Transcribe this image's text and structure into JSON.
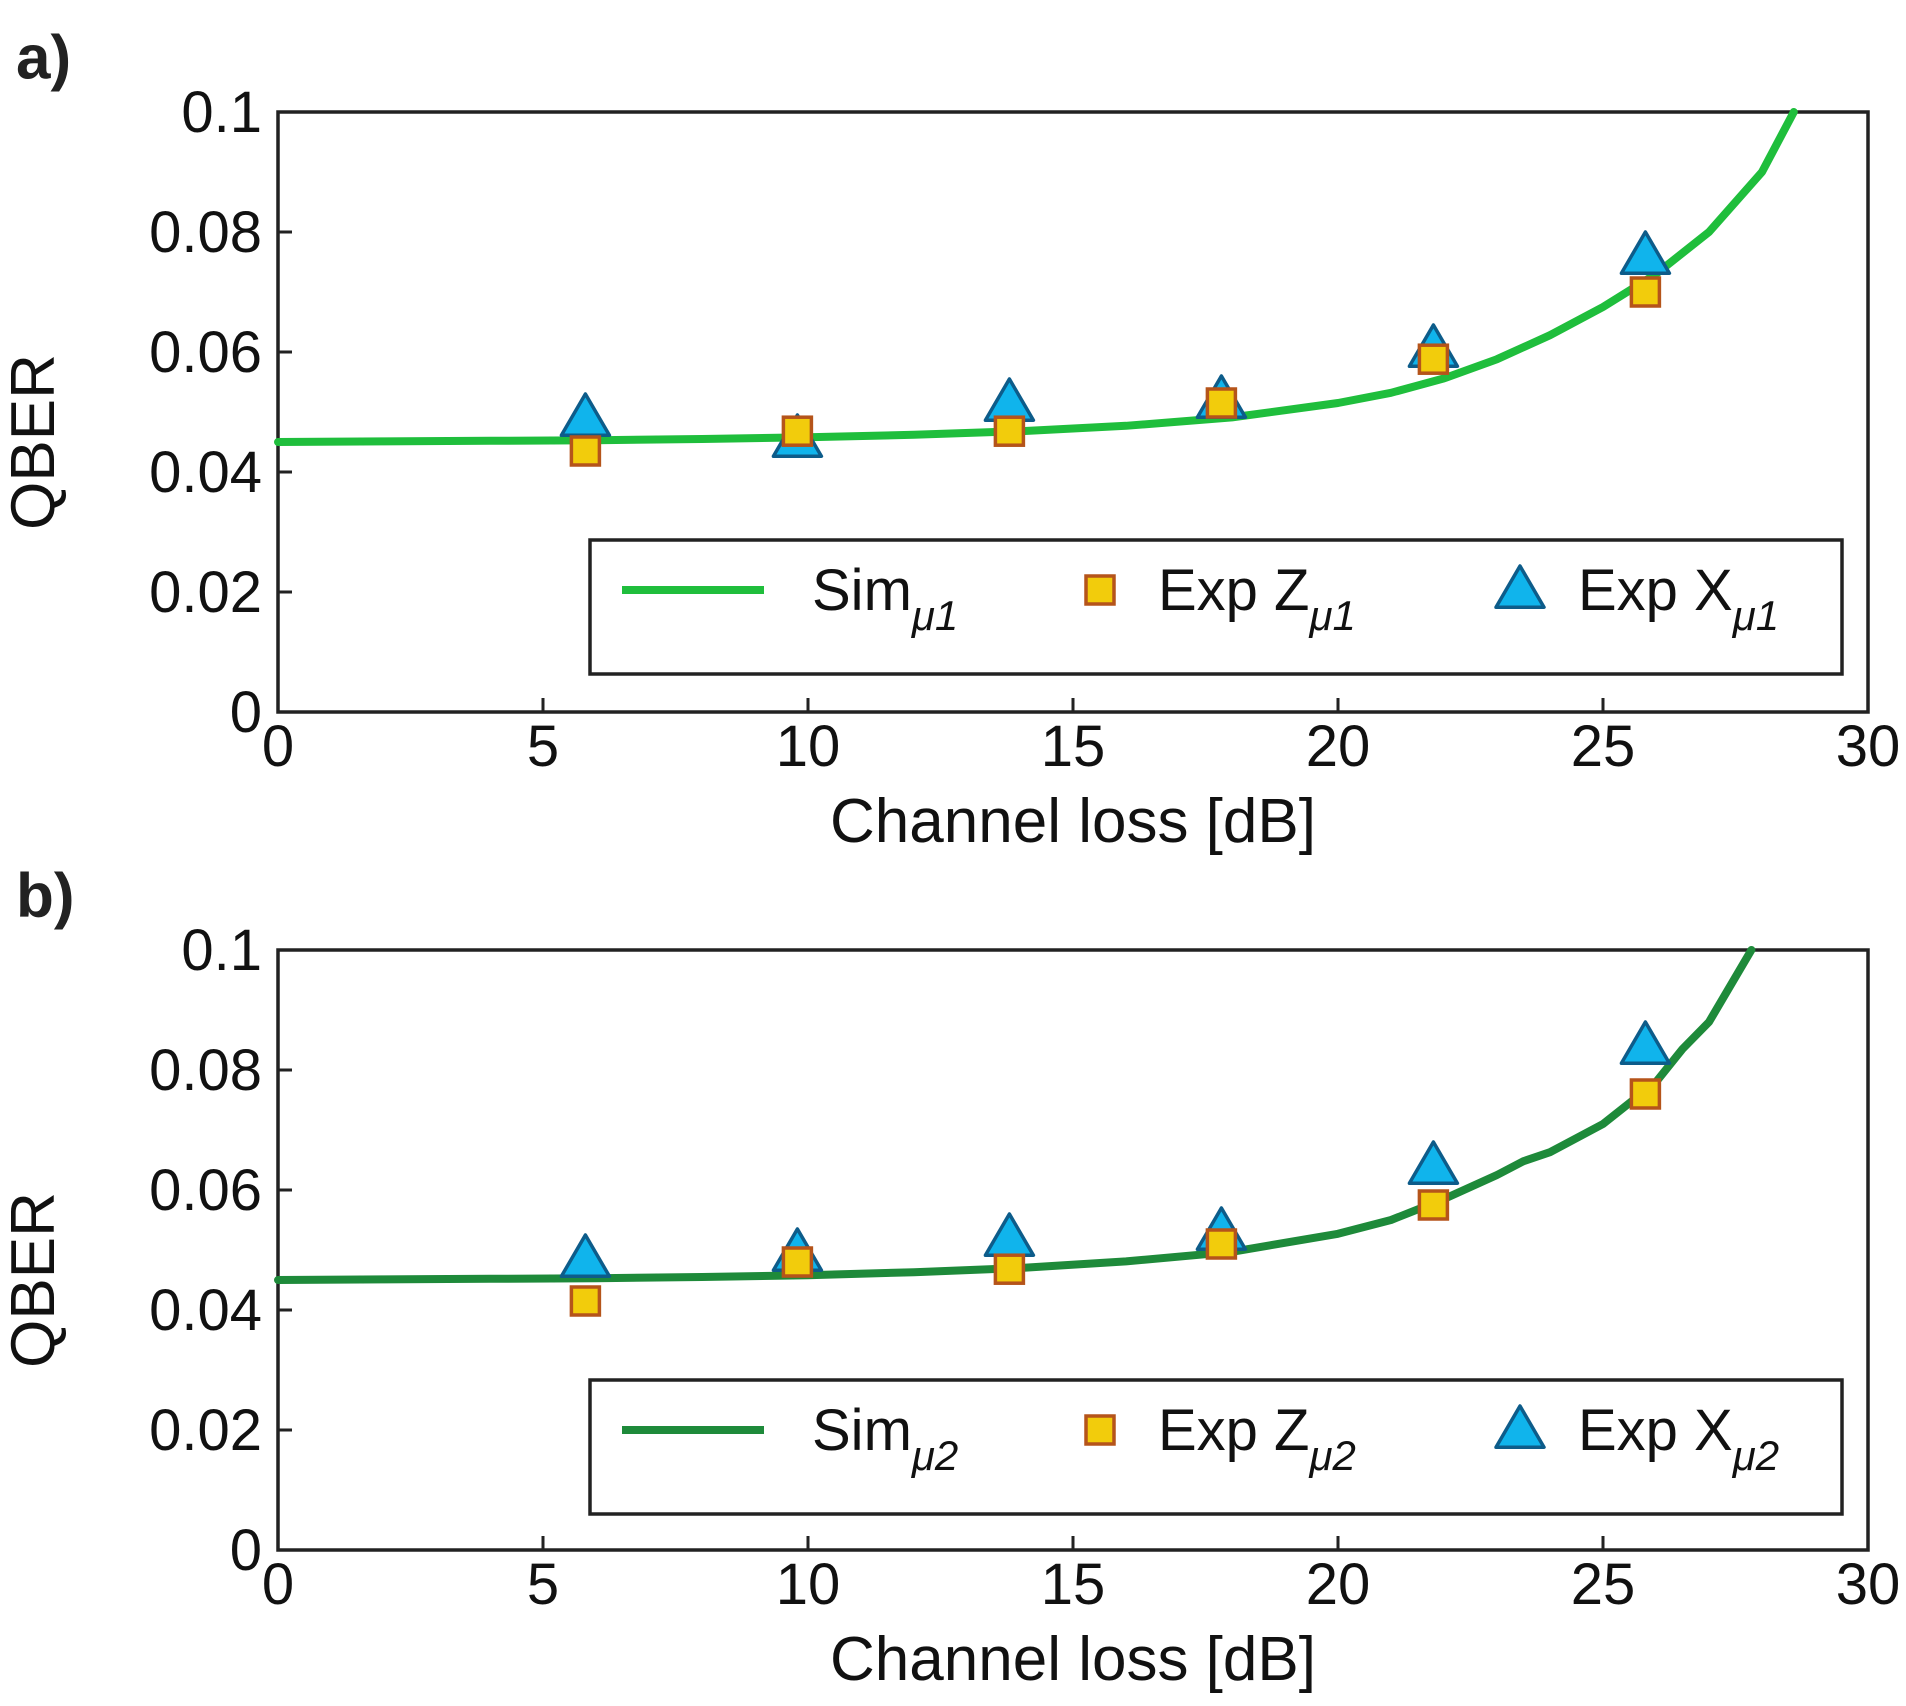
{
  "chart_data": [
    {
      "type": "line",
      "panel_label": "a)",
      "xlabel": "Channel loss [dB]",
      "ylabel": "QBER",
      "xlim": [
        0,
        30
      ],
      "ylim": [
        0,
        0.1
      ],
      "xticks": [
        0,
        5,
        10,
        15,
        20,
        25,
        30
      ],
      "xtick_labels": [
        "0",
        "5",
        "10",
        "15",
        "20",
        "25",
        "30"
      ],
      "yticks": [
        0,
        0.02,
        0.04,
        0.06,
        0.08,
        0.1
      ],
      "ytick_labels": [
        "0",
        "0.02",
        "0.04",
        "0.06",
        "0.08",
        "0.1"
      ],
      "grid": false,
      "legend_position": "lower-right",
      "series": [
        {
          "name": "Sim",
          "subscript": "μ1",
          "kind": "line",
          "color": "#1FBE3C",
          "x": [
            0,
            2,
            4,
            6,
            8,
            10,
            12,
            14,
            16,
            18,
            20,
            21,
            22,
            23,
            24,
            25,
            26,
            27,
            28,
            28.6
          ],
          "y": [
            0.045,
            0.0451,
            0.0452,
            0.0453,
            0.0455,
            0.0458,
            0.0462,
            0.0468,
            0.0477,
            0.0491,
            0.0515,
            0.0532,
            0.0556,
            0.0588,
            0.0628,
            0.0675,
            0.073,
            0.08,
            0.09,
            0.1
          ]
        },
        {
          "name": "Exp Z",
          "subscript": "μ1",
          "kind": "square",
          "color": "#F2CC0C",
          "edge": "#B5541A",
          "x": [
            5.8,
            9.8,
            13.8,
            17.8,
            21.8,
            25.8
          ],
          "y": [
            0.0435,
            0.0468,
            0.0468,
            0.0515,
            0.0588,
            0.07
          ]
        },
        {
          "name": "Exp X",
          "subscript": "μ1",
          "kind": "triangle",
          "color": "#10B4EC",
          "edge": "#0D5C8A",
          "x": [
            5.8,
            9.8,
            13.8,
            17.8,
            21.8,
            25.8
          ],
          "y": [
            0.049,
            0.0455,
            0.0515,
            0.052,
            0.0605,
            0.076
          ]
        }
      ]
    },
    {
      "type": "line",
      "panel_label": "b)",
      "xlabel": "Channel loss [dB]",
      "ylabel": "QBER",
      "xlim": [
        0,
        30
      ],
      "ylim": [
        0,
        0.1
      ],
      "xticks": [
        0,
        5,
        10,
        15,
        20,
        25,
        30
      ],
      "xtick_labels": [
        "0",
        "5",
        "10",
        "15",
        "20",
        "25",
        "30"
      ],
      "yticks": [
        0,
        0.02,
        0.04,
        0.06,
        0.08,
        0.1
      ],
      "ytick_labels": [
        "0",
        "0.02",
        "0.04",
        "0.06",
        "0.08",
        "0.1"
      ],
      "grid": false,
      "legend_position": "lower-right",
      "series": [
        {
          "name": "Sim",
          "subscript": "μ2",
          "kind": "line",
          "color": "#1E8A3A",
          "x": [
            0,
            2,
            4,
            6,
            8,
            10,
            12,
            14,
            16,
            18,
            20,
            21,
            22,
            23,
            23.5,
            24,
            25,
            26,
            26.5,
            27,
            27.8
          ],
          "y": [
            0.045,
            0.0451,
            0.0452,
            0.0453,
            0.0455,
            0.0458,
            0.0463,
            0.047,
            0.0481,
            0.0497,
            0.0527,
            0.055,
            0.0585,
            0.0625,
            0.0648,
            0.0663,
            0.071,
            0.078,
            0.0835,
            0.088,
            0.1
          ]
        },
        {
          "name": "Exp Z",
          "subscript": "μ2",
          "kind": "square",
          "color": "#F2CC0C",
          "edge": "#B5541A",
          "x": [
            5.8,
            9.8,
            13.8,
            17.8,
            21.8,
            25.8
          ],
          "y": [
            0.0415,
            0.048,
            0.0468,
            0.051,
            0.0575,
            0.076
          ]
        },
        {
          "name": "Exp X",
          "subscript": "μ2",
          "kind": "triangle",
          "color": "#10B4EC",
          "edge": "#0D5C8A",
          "x": [
            5.8,
            9.8,
            13.8,
            17.8,
            21.8,
            25.8
          ],
          "y": [
            0.0485,
            0.0495,
            0.052,
            0.053,
            0.064,
            0.084
          ]
        }
      ]
    }
  ]
}
